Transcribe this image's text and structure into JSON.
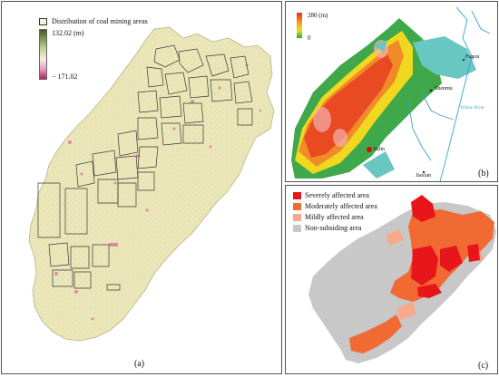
{
  "panel_a": {
    "label": "(a)",
    "legend_mining": "Distribution of coal mining areas",
    "legend_max": "132.02 (m)",
    "legend_min": "− 171.02"
  },
  "panel_b": {
    "label": "(b)",
    "legend_max": "280 (m)",
    "legend_min": "0",
    "places": [
      "Fugou",
      "Shenmu",
      "Yulin",
      "Jiaxian"
    ],
    "river": "Yellow River"
  },
  "panel_c": {
    "label": "(c)",
    "legend": [
      {
        "label": "Severely affected area",
        "color": "#e8161b"
      },
      {
        "label": "Moderately affected area",
        "color": "#f26a33"
      },
      {
        "label": "Mildly affected area",
        "color": "#f7a98a"
      },
      {
        "label": "Non-subsiding area",
        "color": "#c8c8c8"
      }
    ]
  },
  "colors": {
    "map_base": "#e9e6b5",
    "mining_outline": "#3a3a3a",
    "subsidence_pink": "#d66aa0",
    "water": "#69c7c2",
    "river_line": "#3aa0d8"
  }
}
